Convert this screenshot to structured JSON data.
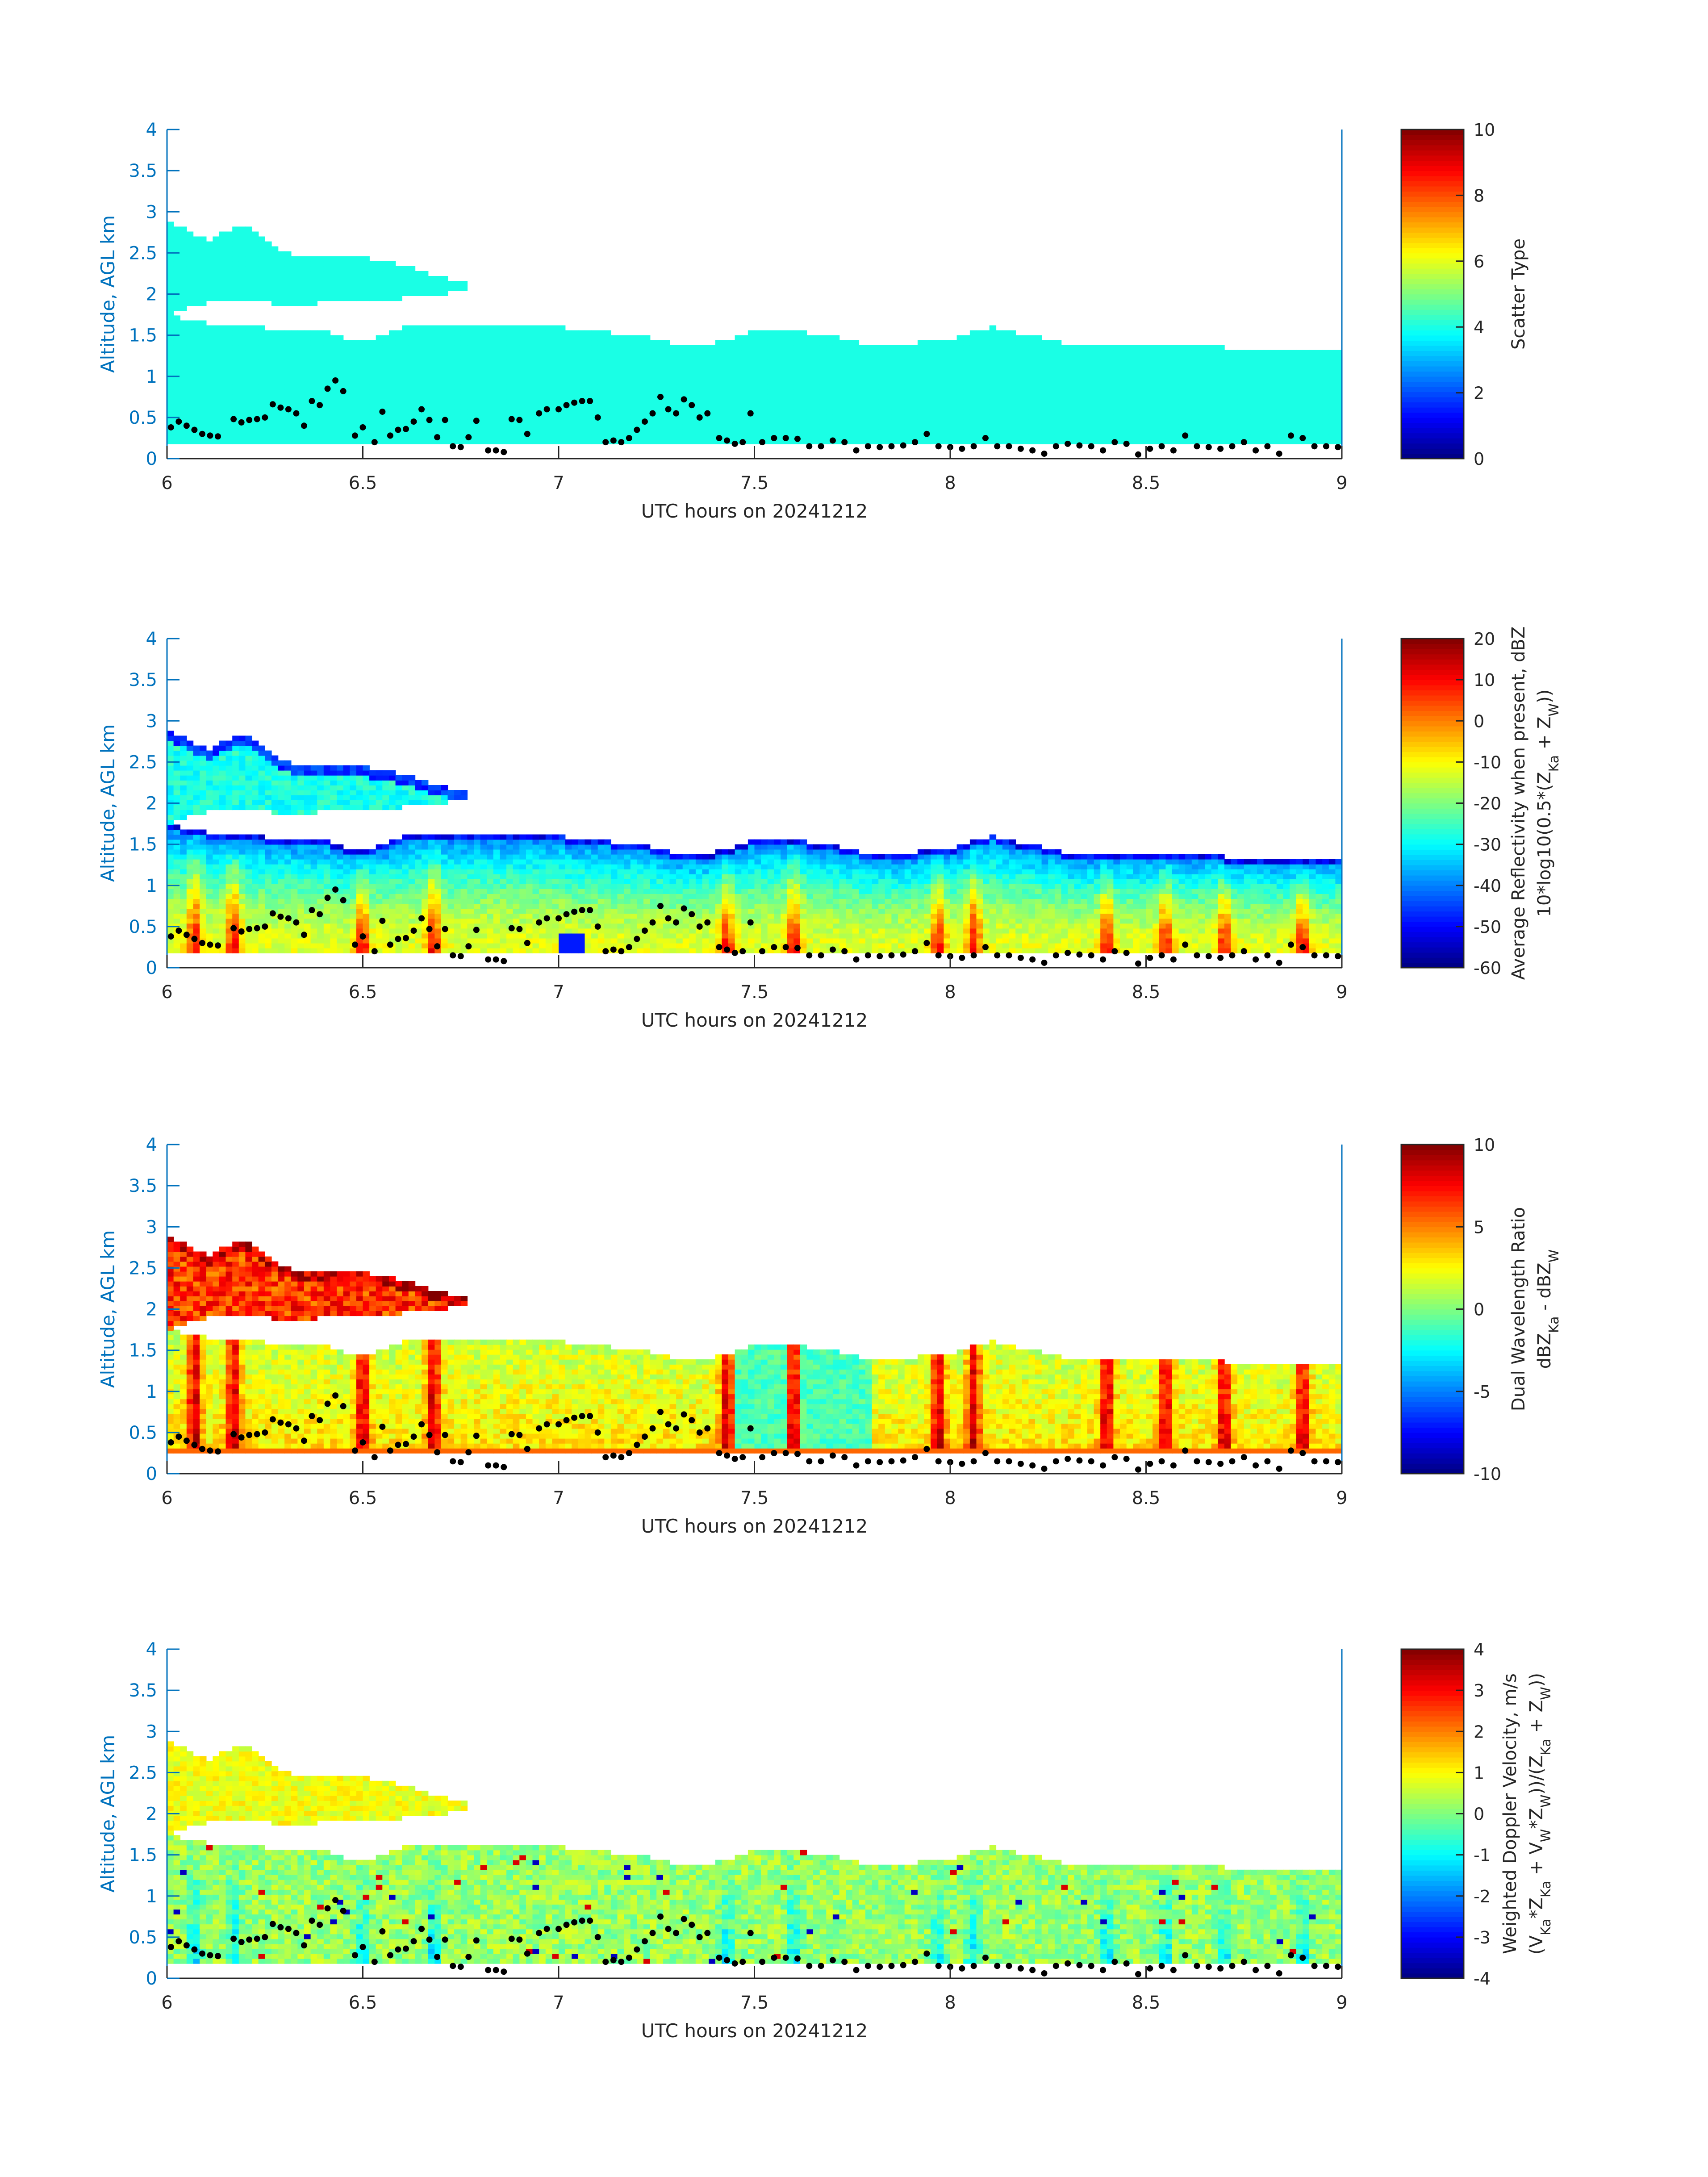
{
  "chart_data": [
    {
      "type": "heatmap",
      "field": "scatter_type",
      "xlabel": "UTC hours on 20241212",
      "ylabel": "Altitude, AGL km",
      "xlim": [
        6,
        9
      ],
      "ylim": [
        0,
        4
      ],
      "xticks": [
        "6",
        "6.5",
        "7",
        "7.5",
        "8",
        "8.5",
        "9"
      ],
      "yticks": [
        "0",
        "0.5",
        "1",
        "1.5",
        "2",
        "2.5",
        "3",
        "3.5",
        "4"
      ],
      "colorbar": {
        "label_lines": [
          [
            {
              "t": "Scatter Type"
            }
          ]
        ],
        "clim": [
          0,
          10
        ],
        "ticks": [
          "0",
          "2",
          "4",
          "6",
          "8",
          "10"
        ],
        "colormap": "jet"
      },
      "uniform_value": 4
    },
    {
      "type": "heatmap",
      "field": "average_reflectivity_dbz",
      "xlabel": "UTC hours on 20241212",
      "ylabel": "Altitude, AGL km",
      "xlim": [
        6,
        9
      ],
      "ylim": [
        0,
        4
      ],
      "xticks": [
        "6",
        "6.5",
        "7",
        "7.5",
        "8",
        "8.5",
        "9"
      ],
      "yticks": [
        "0",
        "0.5",
        "1",
        "1.5",
        "2",
        "2.5",
        "3",
        "3.5",
        "4"
      ],
      "colorbar": {
        "label_lines": [
          [
            {
              "t": "Average Reflectivity when present, dBZ"
            }
          ],
          [
            {
              "t": "10*log10(0.5*(Z"
            },
            {
              "t": "Ka",
              "sub": true
            },
            {
              "t": " + Z"
            },
            {
              "t": "W",
              "sub": true
            },
            {
              "t": "))"
            }
          ]
        ],
        "clim": [
          -60,
          20
        ],
        "ticks": [
          "-60",
          "-50",
          "-40",
          "-30",
          "-20",
          "-10",
          "0",
          "10",
          "20"
        ],
        "colormap": "jet"
      },
      "lower_layer_base": -12,
      "layer_top_value": -42,
      "upper_layer_value": -28,
      "column_boost": 24
    },
    {
      "type": "heatmap",
      "field": "dual_wavelength_ratio",
      "xlabel": "UTC hours on 20241212",
      "ylabel": "Altitude, AGL km",
      "xlim": [
        6,
        9
      ],
      "ylim": [
        0,
        4
      ],
      "xticks": [
        "6",
        "6.5",
        "7",
        "7.5",
        "8",
        "8.5",
        "9"
      ],
      "yticks": [
        "0",
        "0.5",
        "1",
        "1.5",
        "2",
        "2.5",
        "3",
        "3.5",
        "4"
      ],
      "colorbar": {
        "label_lines": [
          [
            {
              "t": "Dual Wavelength Ratio"
            }
          ],
          [
            {
              "t": "dBZ"
            },
            {
              "t": "Ka",
              "sub": true
            },
            {
              "t": " - dBZ"
            },
            {
              "t": "W",
              "sub": true
            }
          ]
        ],
        "clim": [
          -10,
          10
        ],
        "ticks": [
          "-10",
          "-5",
          "0",
          "5",
          "10"
        ],
        "colormap": "jet"
      },
      "lower_layer_base": 3,
      "layer_top_value": 1.5,
      "upper_layer_value": 6.5,
      "column_boost": 6,
      "bottom_row_value": 5.5
    },
    {
      "type": "heatmap",
      "field": "weighted_doppler_velocity_ms",
      "xlabel": "UTC hours on 20241212",
      "ylabel": "Altitude, AGL km",
      "xlim": [
        6,
        9
      ],
      "ylim": [
        0,
        4
      ],
      "xticks": [
        "6",
        "6.5",
        "7",
        "7.5",
        "8",
        "8.5",
        "9"
      ],
      "yticks": [
        "0",
        "0.5",
        "1",
        "1.5",
        "2",
        "2.5",
        "3",
        "3.5",
        "4"
      ],
      "colorbar": {
        "label_lines": [
          [
            {
              "t": "Weighted Doppler Velocity, m/s"
            }
          ],
          [
            {
              "t": "(V"
            },
            {
              "t": "Ka",
              "sub": true
            },
            {
              "t": "*Z"
            },
            {
              "t": "Ka",
              "sub": true
            },
            {
              "t": " + V"
            },
            {
              "t": "W",
              "sub": true
            },
            {
              "t": "*Z"
            },
            {
              "t": "W",
              "sub": true
            },
            {
              "t": "))/(Z"
            },
            {
              "t": "Ka",
              "sub": true
            },
            {
              "t": " + Z"
            },
            {
              "t": "W",
              "sub": true
            },
            {
              "t": "))"
            }
          ]
        ],
        "clim": [
          -4,
          4
        ],
        "ticks": [
          "-4",
          "-3",
          "-2",
          "-1",
          "0",
          "1",
          "2",
          "3",
          "4"
        ],
        "colormap": "jet"
      },
      "lower_layer_base": 0.2,
      "layer_top_value": 0.4,
      "upper_layer_value": 0.9,
      "column_boost": -1.4
    }
  ],
  "cloud_structure": {
    "echo_base_km": 0.18,
    "dwr_echo_base_km": 0.25,
    "lower_layer_top_km": {
      "t": [
        6.0,
        6.1,
        6.2,
        6.3,
        6.4,
        6.5,
        6.6,
        6.7,
        6.8,
        6.9,
        7.0,
        7.1,
        7.2,
        7.3,
        7.4,
        7.5,
        7.6,
        7.7,
        7.8,
        7.9,
        8.0,
        8.1,
        8.2,
        8.3,
        8.4,
        8.5,
        8.6,
        8.7,
        8.8,
        8.9,
        9.0
      ],
      "km": [
        1.75,
        1.65,
        1.6,
        1.58,
        1.55,
        1.4,
        1.6,
        1.65,
        1.62,
        1.6,
        1.6,
        1.55,
        1.5,
        1.4,
        1.4,
        1.55,
        1.55,
        1.5,
        1.35,
        1.4,
        1.45,
        1.6,
        1.5,
        1.4,
        1.4,
        1.35,
        1.35,
        1.35,
        1.3,
        1.3,
        1.3
      ]
    },
    "upper_layer": {
      "t": [
        6.0,
        6.1,
        6.2,
        6.3,
        6.4,
        6.5,
        6.6,
        6.7,
        6.77
      ],
      "base_km": [
        1.75,
        1.9,
        1.95,
        1.85,
        1.9,
        1.9,
        1.95,
        2.0,
        2.05
      ],
      "top_km": [
        2.9,
        2.65,
        2.85,
        2.5,
        2.45,
        2.45,
        2.35,
        2.2,
        2.15
      ]
    },
    "intense_columns_hours": [
      6.07,
      6.17,
      6.5,
      6.68,
      7.43,
      7.6,
      7.97,
      8.06,
      8.4,
      8.55,
      8.7,
      8.9
    ]
  },
  "cloud_base_dots": [
    [
      6.01,
      0.38
    ],
    [
      6.03,
      0.45
    ],
    [
      6.05,
      0.4
    ],
    [
      6.07,
      0.35
    ],
    [
      6.09,
      0.3
    ],
    [
      6.11,
      0.28
    ],
    [
      6.13,
      0.27
    ],
    [
      6.17,
      0.48
    ],
    [
      6.19,
      0.44
    ],
    [
      6.21,
      0.47
    ],
    [
      6.23,
      0.48
    ],
    [
      6.25,
      0.5
    ],
    [
      6.27,
      0.66
    ],
    [
      6.29,
      0.62
    ],
    [
      6.31,
      0.6
    ],
    [
      6.33,
      0.55
    ],
    [
      6.35,
      0.4
    ],
    [
      6.37,
      0.7
    ],
    [
      6.39,
      0.65
    ],
    [
      6.41,
      0.85
    ],
    [
      6.43,
      0.95
    ],
    [
      6.45,
      0.82
    ],
    [
      6.48,
      0.28
    ],
    [
      6.5,
      0.38
    ],
    [
      6.53,
      0.2
    ],
    [
      6.55,
      0.57
    ],
    [
      6.57,
      0.28
    ],
    [
      6.59,
      0.35
    ],
    [
      6.61,
      0.36
    ],
    [
      6.63,
      0.45
    ],
    [
      6.65,
      0.6
    ],
    [
      6.67,
      0.47
    ],
    [
      6.69,
      0.26
    ],
    [
      6.71,
      0.47
    ],
    [
      6.73,
      0.15
    ],
    [
      6.75,
      0.14
    ],
    [
      6.77,
      0.26
    ],
    [
      6.79,
      0.46
    ],
    [
      6.82,
      0.1
    ],
    [
      6.84,
      0.1
    ],
    [
      6.86,
      0.08
    ],
    [
      6.88,
      0.48
    ],
    [
      6.9,
      0.47
    ],
    [
      6.92,
      0.3
    ],
    [
      6.95,
      0.55
    ],
    [
      6.97,
      0.6
    ],
    [
      7.0,
      0.6
    ],
    [
      7.02,
      0.65
    ],
    [
      7.04,
      0.68
    ],
    [
      7.06,
      0.7
    ],
    [
      7.08,
      0.7
    ],
    [
      7.1,
      0.5
    ],
    [
      7.12,
      0.2
    ],
    [
      7.14,
      0.22
    ],
    [
      7.16,
      0.2
    ],
    [
      7.18,
      0.25
    ],
    [
      7.2,
      0.35
    ],
    [
      7.22,
      0.45
    ],
    [
      7.24,
      0.55
    ],
    [
      7.26,
      0.75
    ],
    [
      7.28,
      0.6
    ],
    [
      7.3,
      0.55
    ],
    [
      7.32,
      0.72
    ],
    [
      7.34,
      0.65
    ],
    [
      7.36,
      0.5
    ],
    [
      7.38,
      0.55
    ],
    [
      7.41,
      0.25
    ],
    [
      7.43,
      0.22
    ],
    [
      7.45,
      0.18
    ],
    [
      7.47,
      0.2
    ],
    [
      7.49,
      0.55
    ],
    [
      7.52,
      0.2
    ],
    [
      7.55,
      0.25
    ],
    [
      7.58,
      0.25
    ],
    [
      7.61,
      0.24
    ],
    [
      7.64,
      0.15
    ],
    [
      7.67,
      0.15
    ],
    [
      7.7,
      0.22
    ],
    [
      7.73,
      0.2
    ],
    [
      7.76,
      0.1
    ],
    [
      7.79,
      0.15
    ],
    [
      7.82,
      0.14
    ],
    [
      7.85,
      0.15
    ],
    [
      7.88,
      0.16
    ],
    [
      7.91,
      0.2
    ],
    [
      7.94,
      0.3
    ],
    [
      7.97,
      0.15
    ],
    [
      8.0,
      0.14
    ],
    [
      8.03,
      0.12
    ],
    [
      8.06,
      0.15
    ],
    [
      8.09,
      0.25
    ],
    [
      8.12,
      0.15
    ],
    [
      8.15,
      0.15
    ],
    [
      8.18,
      0.12
    ],
    [
      8.21,
      0.1
    ],
    [
      8.24,
      0.06
    ],
    [
      8.27,
      0.15
    ],
    [
      8.3,
      0.18
    ],
    [
      8.33,
      0.16
    ],
    [
      8.36,
      0.15
    ],
    [
      8.39,
      0.1
    ],
    [
      8.42,
      0.2
    ],
    [
      8.45,
      0.18
    ],
    [
      8.48,
      0.05
    ],
    [
      8.51,
      0.12
    ],
    [
      8.54,
      0.15
    ],
    [
      8.57,
      0.1
    ],
    [
      8.6,
      0.28
    ],
    [
      8.63,
      0.15
    ],
    [
      8.66,
      0.14
    ],
    [
      8.69,
      0.12
    ],
    [
      8.72,
      0.15
    ],
    [
      8.75,
      0.2
    ],
    [
      8.78,
      0.1
    ],
    [
      8.81,
      0.15
    ],
    [
      8.84,
      0.06
    ],
    [
      8.87,
      0.28
    ],
    [
      8.9,
      0.25
    ],
    [
      8.93,
      0.15
    ],
    [
      8.96,
      0.15
    ],
    [
      8.99,
      0.14
    ]
  ],
  "colors": {
    "axis_y": "#0072BD",
    "axis_x": "#262626",
    "dots": "#000000"
  }
}
